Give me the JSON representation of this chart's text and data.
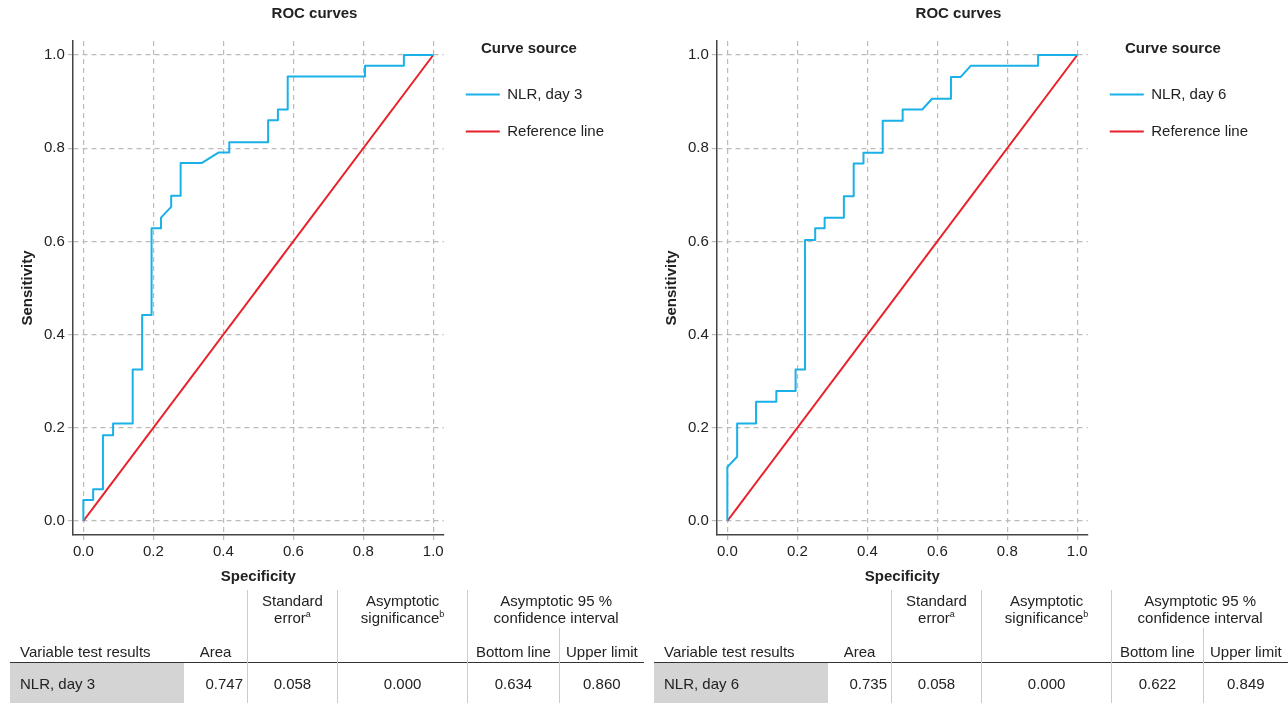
{
  "chart_data": [
    {
      "type": "line",
      "title": "ROC curves",
      "xlabel": "Specificity",
      "ylabel": "Sensitivity",
      "legend_title": "Curve source",
      "legend": "top right",
      "grid": true,
      "xlim": [
        -0.03,
        1.03
      ],
      "ylim": [
        -0.03,
        1.03
      ],
      "xticks": [
        {
          "value": 0,
          "label": "0.0"
        },
        {
          "value": 0.2,
          "label": "0.2"
        },
        {
          "value": 0.4,
          "label": "0.4"
        },
        {
          "value": 0.6,
          "label": "0.6"
        },
        {
          "value": 0.8,
          "label": "0.8"
        },
        {
          "value": 1,
          "label": "1.0"
        }
      ],
      "yticks": [
        {
          "value": 0,
          "label": "0.0"
        },
        {
          "value": 0.2,
          "label": "0.2"
        },
        {
          "value": 0.4,
          "label": "0.4"
        },
        {
          "value": 0.6,
          "label": "0.6"
        },
        {
          "value": 0.8,
          "label": "0.8"
        },
        {
          "value": 1,
          "label": "1.0"
        }
      ],
      "series": [
        {
          "name": "NLR, day 3",
          "color": "#1ab0e8",
          "x": [
            0,
            0,
            0.028,
            0.028,
            0.056,
            0.056,
            0.085,
            0.085,
            0.141,
            0.141,
            0.168,
            0.168,
            0.195,
            0.195,
            0.222,
            0.222,
            0.251,
            0.251,
            0.278,
            0.278,
            0.338,
            0.387,
            0.417,
            0.417,
            0.528,
            0.528,
            0.556,
            0.556,
            0.584,
            0.584,
            0.805,
            0.805,
            0.916,
            0.916,
            1
          ],
          "values": [
            0,
            0.045,
            0.045,
            0.068,
            0.068,
            0.184,
            0.184,
            0.209,
            0.209,
            0.325,
            0.325,
            0.442,
            0.442,
            0.628,
            0.628,
            0.651,
            0.674,
            0.698,
            0.698,
            0.768,
            0.768,
            0.791,
            0.791,
            0.813,
            0.813,
            0.86,
            0.86,
            0.883,
            0.883,
            0.954,
            0.954,
            0.977,
            0.977,
            1,
            1
          ]
        },
        {
          "name": "Reference line",
          "color": "#e8202a",
          "x": [
            0,
            1
          ],
          "values": [
            0,
            1
          ]
        }
      ],
      "annotations": [
        "Variable test results",
        "Area",
        "Standard error$^{a}$",
        "Asymptotic significance$^{b}$",
        "Asymptotic 95 % confidence interval",
        "Bottom line",
        "Upper limit",
        "NLR, day 3",
        "0.747",
        "0.058",
        "0.000",
        "0.634",
        "0.860"
      ]
    },
    {
      "type": "line",
      "title": "ROC curves",
      "xlabel": "Specificity",
      "ylabel": "Sensitivity",
      "legend_title": "Curve source",
      "legend": "top right",
      "grid": true,
      "xlim": [
        -0.03,
        1.03
      ],
      "ylim": [
        -0.03,
        1.03
      ],
      "xticks": [
        {
          "value": 0,
          "label": "0.0"
        },
        {
          "value": 0.2,
          "label": "0.2"
        },
        {
          "value": 0.4,
          "label": "0.4"
        },
        {
          "value": 0.6,
          "label": "0.6"
        },
        {
          "value": 0.8,
          "label": "0.8"
        },
        {
          "value": 1,
          "label": "1.0"
        }
      ],
      "yticks": [
        {
          "value": 0,
          "label": "0.0"
        },
        {
          "value": 0.2,
          "label": "0.2"
        },
        {
          "value": 0.4,
          "label": "0.4"
        },
        {
          "value": 0.6,
          "label": "0.6"
        },
        {
          "value": 0.8,
          "label": "0.8"
        },
        {
          "value": 1,
          "label": "1.0"
        }
      ],
      "series": [
        {
          "name": "NLR, day 6",
          "color": "#1ab0e8",
          "x": [
            0,
            0,
            0.028,
            0.028,
            0.082,
            0.082,
            0.14,
            0.14,
            0.195,
            0.195,
            0.222,
            0.222,
            0.251,
            0.251,
            0.278,
            0.278,
            0.333,
            0.333,
            0.361,
            0.361,
            0.389,
            0.389,
            0.444,
            0.444,
            0.501,
            0.501,
            0.557,
            0.585,
            0.639,
            0.639,
            0.667,
            0.696,
            0.888,
            0.888,
            1
          ],
          "values": [
            0,
            0.116,
            0.138,
            0.209,
            0.209,
            0.256,
            0.256,
            0.279,
            0.279,
            0.325,
            0.325,
            0.603,
            0.603,
            0.628,
            0.628,
            0.651,
            0.651,
            0.697,
            0.697,
            0.767,
            0.767,
            0.79,
            0.79,
            0.859,
            0.859,
            0.883,
            0.883,
            0.906,
            0.906,
            0.953,
            0.953,
            0.977,
            0.977,
            1,
            1
          ]
        },
        {
          "name": "Reference line",
          "color": "#e8202a",
          "x": [
            0,
            1
          ],
          "values": [
            0,
            1
          ]
        }
      ],
      "annotations": [
        "Variable test results",
        "Area",
        "Standard error$^{a}$",
        "Asymptotic significance$^{b}$",
        "Asymptotic 95 % confidence interval",
        "Bottom line",
        "Upper limit",
        "NLR, day 6",
        "0.735",
        "0.058",
        "0.000",
        "0.622",
        "0.849"
      ]
    }
  ]
}
